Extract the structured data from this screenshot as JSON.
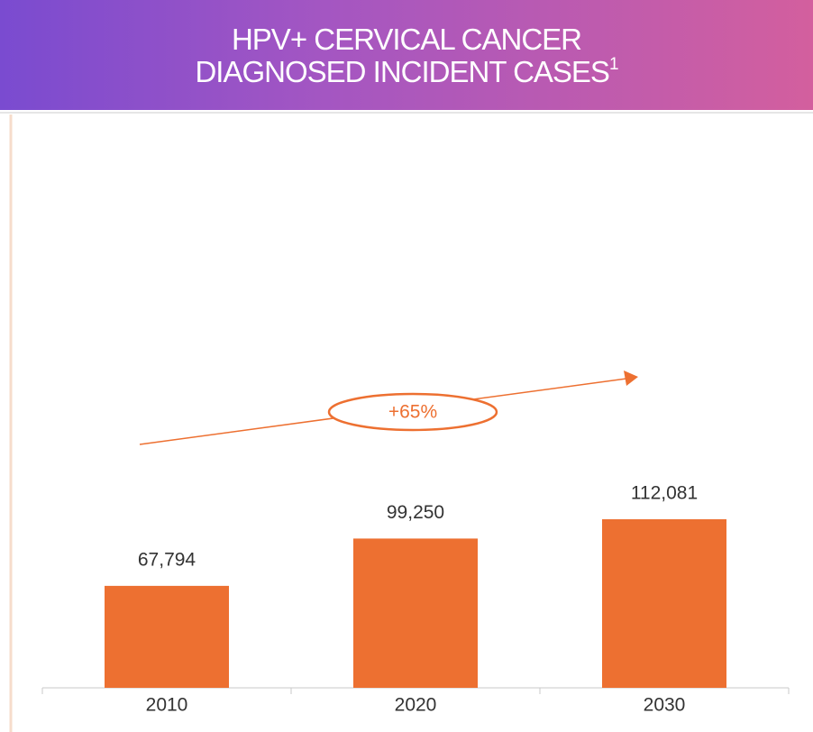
{
  "chart_data": {
    "type": "bar",
    "title": "HPV+ CERVICAL CANCER DIAGNOSED INCIDENT CASES",
    "title_footnote": "1",
    "categories": [
      "2010",
      "2020",
      "2030"
    ],
    "values": [
      67794,
      99250,
      112081
    ],
    "value_labels": [
      "67,794",
      "99,250",
      "112,081"
    ],
    "color": "#ed7031",
    "annotation": "+65%"
  }
}
